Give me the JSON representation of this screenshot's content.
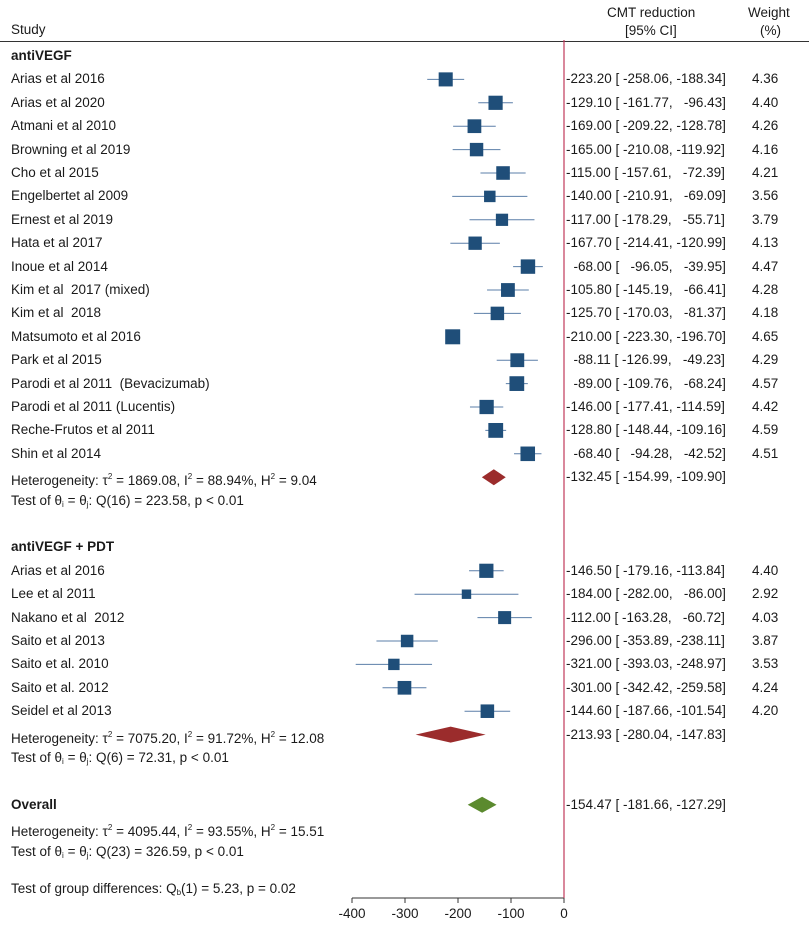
{
  "header": {
    "study_label": "Study",
    "cmt_line1": "CMT reduction",
    "cmt_line2": "[95% CI]",
    "weight_line1": "Weight",
    "weight_line2": "(%)"
  },
  "chart_data": {
    "type": "forest",
    "xlim": [
      -400,
      0
    ],
    "xticks": [
      -400,
      -300,
      -200,
      -100,
      0
    ],
    "groups": [
      {
        "name": "antiVEGF",
        "studies": [
          {
            "label": "Arias et al 2016",
            "est": -223.2,
            "lo": -258.06,
            "hi": -188.34,
            "ci_text": "-223.20 [ -258.06, -188.34]",
            "weight": "4.36"
          },
          {
            "label": "Arias et al 2020",
            "est": -129.1,
            "lo": -161.77,
            "hi": -96.43,
            "ci_text": "-129.10 [ -161.77,   -96.43]",
            "weight": "4.40"
          },
          {
            "label": "Atmani et al 2010",
            "est": -169.0,
            "lo": -209.22,
            "hi": -128.78,
            "ci_text": "-169.00 [ -209.22, -128.78]",
            "weight": "4.26"
          },
          {
            "label": "Browning et al 2019",
            "est": -165.0,
            "lo": -210.08,
            "hi": -119.92,
            "ci_text": "-165.00 [ -210.08, -119.92]",
            "weight": "4.16"
          },
          {
            "label": "Cho et al 2015",
            "est": -115.0,
            "lo": -157.61,
            "hi": -72.39,
            "ci_text": "-115.00 [ -157.61,   -72.39]",
            "weight": "4.21"
          },
          {
            "label": "Engelbertet al 2009",
            "est": -140.0,
            "lo": -210.91,
            "hi": -69.09,
            "ci_text": "-140.00 [ -210.91,   -69.09]",
            "weight": "3.56"
          },
          {
            "label": "Ernest et al 2019",
            "est": -117.0,
            "lo": -178.29,
            "hi": -55.71,
            "ci_text": "-117.00 [ -178.29,   -55.71]",
            "weight": "3.79"
          },
          {
            "label": "Hata et al 2017",
            "est": -167.7,
            "lo": -214.41,
            "hi": -120.99,
            "ci_text": "-167.70 [ -214.41, -120.99]",
            "weight": "4.13"
          },
          {
            "label": "Inoue et al 2014",
            "est": -68.0,
            "lo": -96.05,
            "hi": -39.95,
            "ci_text": "  -68.00 [   -96.05,   -39.95]",
            "weight": "4.47"
          },
          {
            "label": "Kim et al  2017 (mixed)",
            "est": -105.8,
            "lo": -145.19,
            "hi": -66.41,
            "ci_text": "-105.80 [ -145.19,   -66.41]",
            "weight": "4.28"
          },
          {
            "label": "Kim et al  2018",
            "est": -125.7,
            "lo": -170.03,
            "hi": -81.37,
            "ci_text": "-125.70 [ -170.03,   -81.37]",
            "weight": "4.18"
          },
          {
            "label": "Matsumoto et al 2016",
            "est": -210.0,
            "lo": -223.3,
            "hi": -196.7,
            "ci_text": "-210.00 [ -223.30, -196.70]",
            "weight": "4.65"
          },
          {
            "label": "Park et al 2015",
            "est": -88.11,
            "lo": -126.99,
            "hi": -49.23,
            "ci_text": "  -88.11 [ -126.99,   -49.23]",
            "weight": "4.29"
          },
          {
            "label": "Parodi et al 2011  (Bevacizumab)",
            "est": -89.0,
            "lo": -109.76,
            "hi": -68.24,
            "ci_text": "  -89.00 [ -109.76,   -68.24]",
            "weight": "4.57"
          },
          {
            "label": "Parodi et al 2011 (Lucentis)",
            "est": -146.0,
            "lo": -177.41,
            "hi": -114.59,
            "ci_text": "-146.00 [ -177.41, -114.59]",
            "weight": "4.42"
          },
          {
            "label": "Reche-Frutos et al 2011",
            "est": -128.8,
            "lo": -148.44,
            "hi": -109.16,
            "ci_text": "-128.80 [ -148.44, -109.16]",
            "weight": "4.59"
          },
          {
            "label": "Shin et al 2014",
            "est": -68.4,
            "lo": -94.28,
            "hi": -42.52,
            "ci_text": "  -68.40 [   -94.28,   -42.52]",
            "weight": "4.51"
          }
        ],
        "summary": {
          "est": -132.45,
          "lo": -154.99,
          "hi": -109.9,
          "ci_text": "-132.45 [ -154.99, -109.90]"
        },
        "heterogeneity": {
          "tau2": "1869.08",
          "i2": "88.94%",
          "h2": "9.04"
        },
        "test": {
          "q": "Q(16) = 223.58",
          "p": "p < 0.01"
        }
      },
      {
        "name": "antiVEGF + PDT",
        "studies": [
          {
            "label": "Arias et al 2016",
            "est": -146.5,
            "lo": -179.16,
            "hi": -113.84,
            "ci_text": "-146.50 [ -179.16, -113.84]",
            "weight": "4.40"
          },
          {
            "label": "Lee et al 2011",
            "est": -184.0,
            "lo": -282.0,
            "hi": -86.0,
            "ci_text": "-184.00 [ -282.00,   -86.00]",
            "weight": "2.92"
          },
          {
            "label": "Nakano et al  2012",
            "est": -112.0,
            "lo": -163.28,
            "hi": -60.72,
            "ci_text": "-112.00 [ -163.28,   -60.72]",
            "weight": "4.03"
          },
          {
            "label": "Saito et al 2013",
            "est": -296.0,
            "lo": -353.89,
            "hi": -238.11,
            "ci_text": "-296.00 [ -353.89, -238.11]",
            "weight": "3.87"
          },
          {
            "label": "Saito et al. 2010",
            "est": -321.0,
            "lo": -393.03,
            "hi": -248.97,
            "ci_text": "-321.00 [ -393.03, -248.97]",
            "weight": "3.53"
          },
          {
            "label": "Saito et al. 2012",
            "est": -301.0,
            "lo": -342.42,
            "hi": -259.58,
            "ci_text": "-301.00 [ -342.42, -259.58]",
            "weight": "4.24"
          },
          {
            "label": "Seidel et al 2013",
            "est": -144.6,
            "lo": -187.66,
            "hi": -101.54,
            "ci_text": "-144.60 [ -187.66, -101.54]",
            "weight": "4.20"
          }
        ],
        "summary": {
          "est": -213.93,
          "lo": -280.04,
          "hi": -147.83,
          "ci_text": "-213.93 [ -280.04, -147.83]"
        },
        "heterogeneity": {
          "tau2": "7075.20",
          "i2": "91.72%",
          "h2": "12.08"
        },
        "test": {
          "q": "Q(6) = 72.31",
          "p": "p < 0.01"
        }
      }
    ],
    "overall": {
      "label": "Overall",
      "summary": {
        "est": -154.47,
        "lo": -181.66,
        "hi": -127.29,
        "ci_text": "-154.47 [ -181.66, -127.29]"
      },
      "heterogeneity": {
        "tau2": "4095.44",
        "i2": "93.55%",
        "h2": "15.51"
      },
      "test": {
        "q": "Q(23) = 326.59",
        "p": "p < 0.01"
      }
    },
    "group_diff": {
      "q": "(1) = 5.23",
      "p": "p = 0.02"
    },
    "colors": {
      "marker": "#1f4e79",
      "ci_line": "#5b7fa8",
      "group_diamond": "#9b2c2c",
      "overall_diamond": "#5b8a2e",
      "ref_line": "#c0395b"
    }
  }
}
